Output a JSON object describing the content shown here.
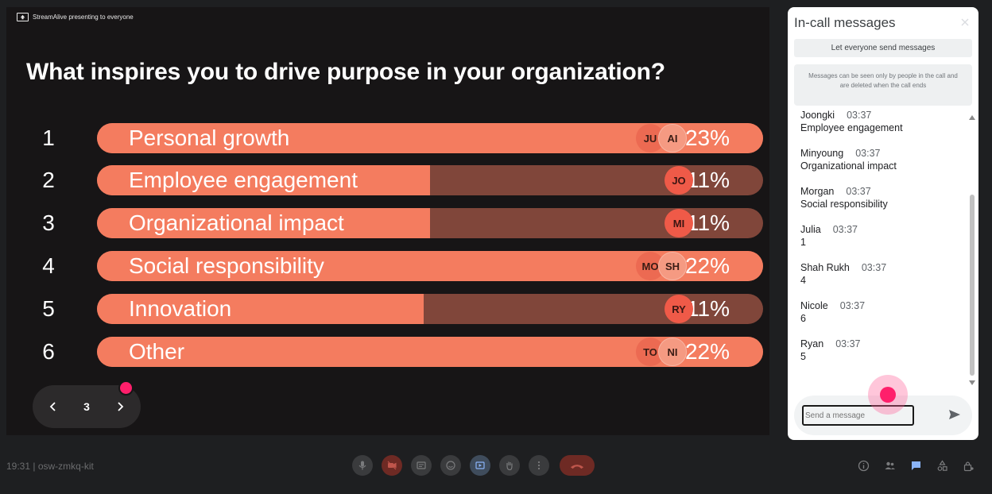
{
  "presenter_banner": "StreamAlive presenting to everyone",
  "question": "What inspires you to drive purpose in your organization?",
  "poll": [
    {
      "rank": "1",
      "label": "Personal growth",
      "percent": "23%",
      "fill": 1.0,
      "avatars": [
        "JU",
        "AI"
      ]
    },
    {
      "rank": "2",
      "label": "Employee engagement",
      "percent": "11%",
      "fill": 0.5,
      "avatars": [
        "JO"
      ]
    },
    {
      "rank": "3",
      "label": "Organizational impact",
      "percent": "11%",
      "fill": 0.5,
      "avatars": [
        "MI"
      ]
    },
    {
      "rank": "4",
      "label": "Social responsibility",
      "percent": "22%",
      "fill": 1.0,
      "avatars": [
        "MO",
        "SH"
      ]
    },
    {
      "rank": "5",
      "label": "Innovation",
      "percent": "11%",
      "fill": 0.49,
      "avatars": [
        "RY"
      ]
    },
    {
      "rank": "6",
      "label": "Other",
      "percent": "22%",
      "fill": 1.0,
      "avatars": [
        "TO",
        "NI"
      ]
    }
  ],
  "pager": {
    "current": "3"
  },
  "chat": {
    "title": "In-call messages",
    "send_toggle": "Let everyone send messages",
    "notice": "Messages can be seen only by people in the call and are deleted when the call ends",
    "messages": [
      {
        "sender": "Joongki",
        "time": "03:37",
        "text": "Employee engagement"
      },
      {
        "sender": "Minyoung",
        "time": "03:37",
        "text": "Organizational impact"
      },
      {
        "sender": "Morgan",
        "time": "03:37",
        "text": "Social responsibility"
      },
      {
        "sender": "Julia",
        "time": "03:37",
        "text": "1"
      },
      {
        "sender": "Shah Rukh",
        "time": "03:37",
        "text": "4"
      },
      {
        "sender": "Nicole",
        "time": "03:37",
        "text": "6"
      },
      {
        "sender": "Ryan",
        "time": "03:37",
        "text": "5"
      }
    ],
    "input_placeholder": "Send a message"
  },
  "meeting": {
    "time": "19:31",
    "separator": "|",
    "code": "osw-zmkq-kit"
  },
  "colors": {
    "bar_fill": "#f47c5f",
    "bar_track": "#80463a",
    "accent": "#ff1f6b"
  }
}
